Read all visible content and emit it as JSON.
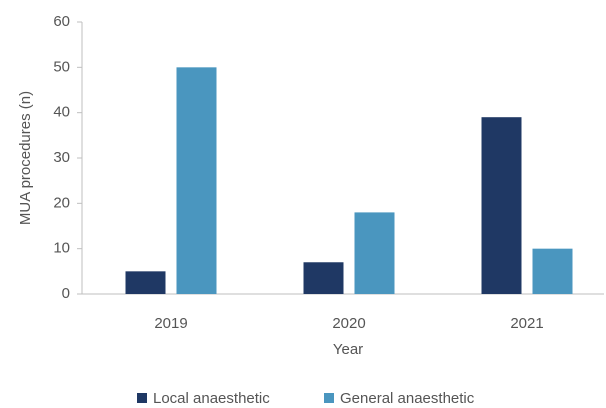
{
  "chart_data": {
    "type": "bar",
    "categories": [
      "2019",
      "2020",
      "2021"
    ],
    "series": [
      {
        "name": "Local anaesthetic",
        "color": "#1f3864",
        "values": [
          5,
          7,
          39
        ]
      },
      {
        "name": "General anaesthetic",
        "color": "#4a96bf",
        "values": [
          50,
          18,
          10
        ]
      }
    ],
    "x_label": "Year",
    "y_label": "MUA procedures (n)",
    "ylim": [
      0,
      60
    ],
    "yticks": [
      0,
      10,
      20,
      30,
      40,
      50,
      60
    ],
    "grid": false,
    "legend": "bottom"
  }
}
